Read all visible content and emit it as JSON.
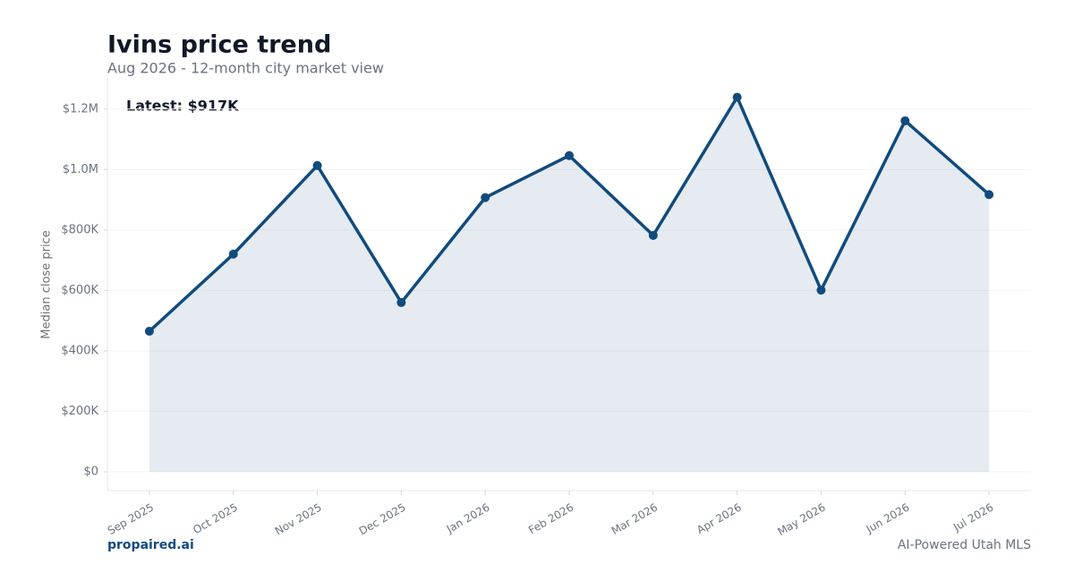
{
  "chart_data": {
    "type": "line",
    "title": "Ivins price trend",
    "subtitle": "Aug 2026 - 12-month city market view",
    "y_label": "Median close price",
    "annotation": "Latest: $917K",
    "categories": [
      "Sep 2025",
      "Oct 2025",
      "Nov 2025",
      "Dec 2025",
      "Jan 2026",
      "Feb 2026",
      "Mar 2026",
      "Apr 2026",
      "May 2026",
      "Jun 2026",
      "Jul 2026"
    ],
    "series": [
      {
        "name": "Median close price",
        "color": "#114b7d",
        "values": [
          465000,
          720000,
          1013000,
          560000,
          907000,
          1046000,
          782000,
          1239000,
          601000,
          1161000,
          917000
        ]
      }
    ],
    "area": true,
    "grid": true,
    "ylim": [
      -62000,
      1300000
    ],
    "yticks": [
      {
        "value": 0,
        "label": "$0"
      },
      {
        "value": 200000,
        "label": "$200K"
      },
      {
        "value": 400000,
        "label": "$400K"
      },
      {
        "value": 600000,
        "label": "$600K"
      },
      {
        "value": 800000,
        "label": "$800K"
      },
      {
        "value": 1000000,
        "label": "$1.0M"
      },
      {
        "value": 1200000,
        "label": "$1.2M"
      }
    ]
  },
  "footer": {
    "brand": "propaired.ai",
    "tagline": "AI-Powered Utah MLS"
  }
}
